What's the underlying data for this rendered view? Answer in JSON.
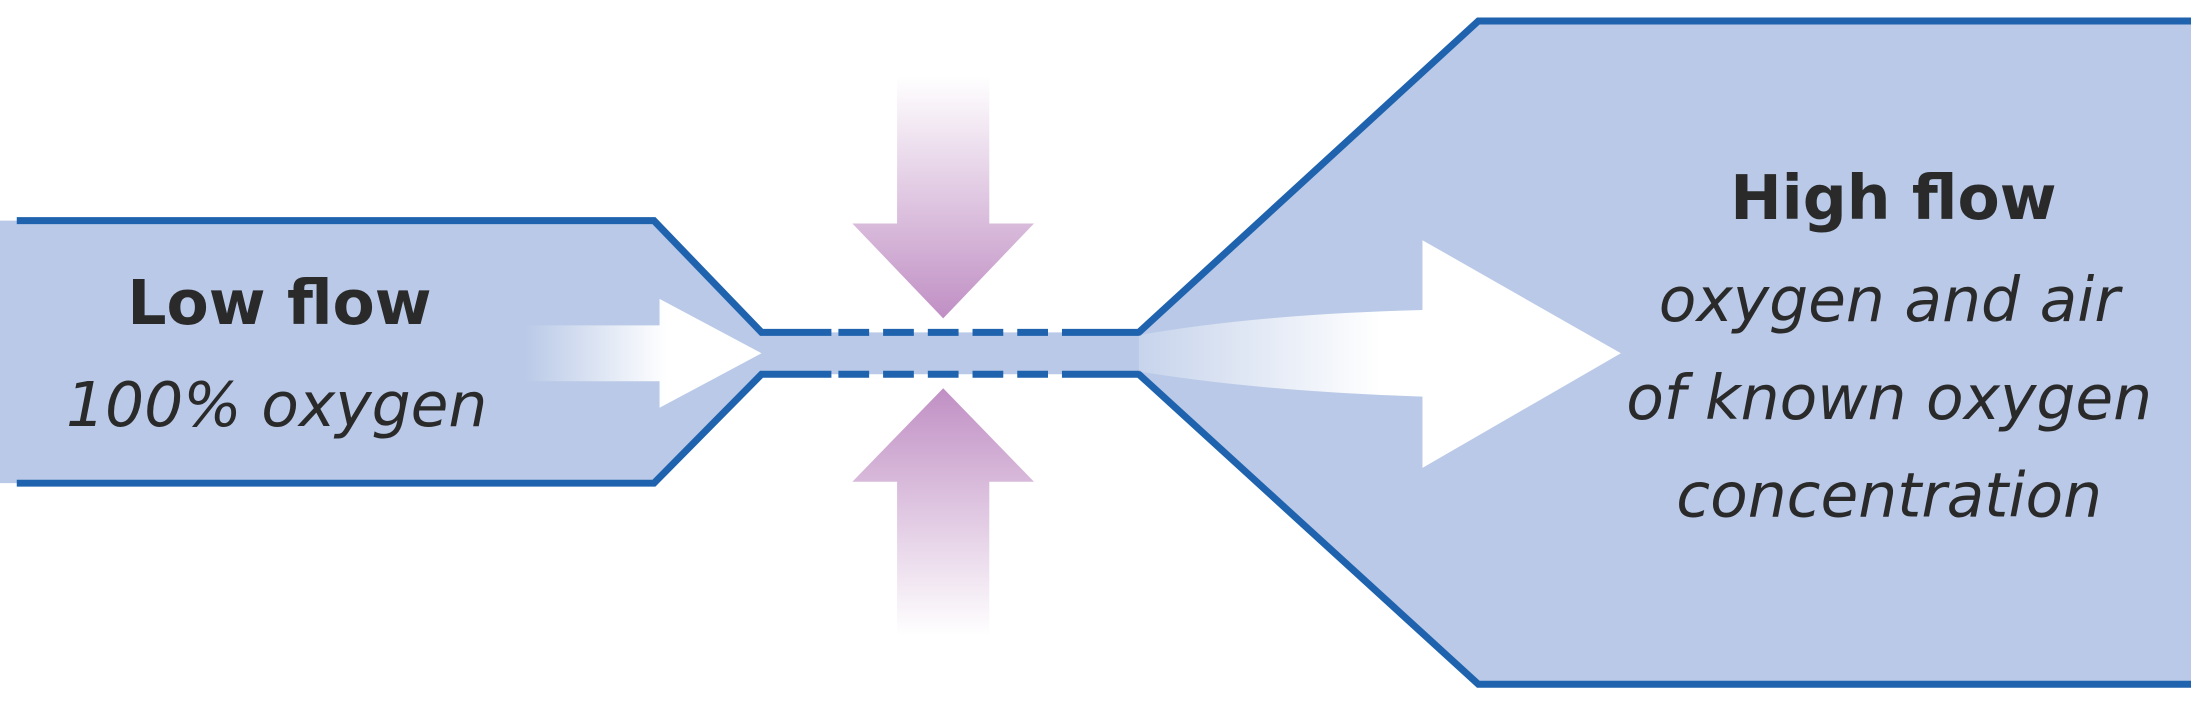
{
  "inlet": {
    "title": "Low flow",
    "description": "100% oxygen"
  },
  "outlet": {
    "title": "High flow",
    "description": [
      "oxygen and air",
      "of known oxygen",
      "concentration"
    ]
  }
}
